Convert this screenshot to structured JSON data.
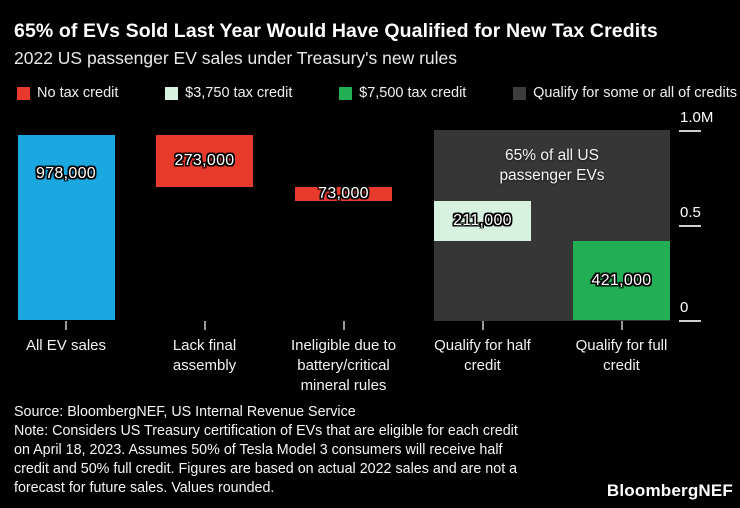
{
  "title": "65% of EVs Sold Last Year Would Have Qualified for New Tax Credits",
  "subtitle": "2022 US passenger EV sales under Treasury's new rules",
  "colors": {
    "background": "#000000",
    "blue": "#1ba7e0",
    "red": "#e73a2c",
    "mint": "#d7f2df",
    "green": "#21ae54",
    "box_gray": "#363636",
    "legend_gray": "#3d3d3d"
  },
  "legend": [
    {
      "label": "No tax credit",
      "color_key": "red"
    },
    {
      "label": "$3,750 tax credit",
      "color_key": "mint"
    },
    {
      "label": "$7,500 tax credit",
      "color_key": "green"
    },
    {
      "label": "Qualify for some or all of credits",
      "color_key": "legend_gray"
    }
  ],
  "chart_data": {
    "type": "bar",
    "subtype": "waterfall",
    "title": "65% of EVs Sold Last Year Would Have Qualified for New Tax Credits",
    "subtitle": "2022 US passenger EV sales under Treasury's new rules",
    "unit": "vehicles",
    "ylim": [
      0,
      1000000
    ],
    "grid": false,
    "y_axis_side": "right",
    "y_ticks": [
      {
        "label": "1.0M",
        "value": 1000000
      },
      {
        "label": "0.5",
        "value": 500000
      },
      {
        "label": "0",
        "value": 0
      }
    ],
    "categories": [
      "All EV sales",
      "Lack final assembly",
      "Ineligible due to battery/critical mineral rules",
      "Qualify for half credit",
      "Qualify for full credit"
    ],
    "bars": [
      {
        "category": "All EV sales",
        "category_lines": [
          "All EV sales"
        ],
        "value": 978000,
        "value_label": "978,000",
        "segment": [
          0,
          978000
        ],
        "color_key": "blue"
      },
      {
        "category": "Lack final assembly",
        "category_lines": [
          "Lack final",
          "assembly"
        ],
        "value": 273000,
        "value_label": "273,000",
        "segment": [
          705000,
          978000
        ],
        "color_key": "red"
      },
      {
        "category": "Ineligible due to battery/critical mineral rules",
        "category_lines": [
          "Ineligible due to",
          "battery/critical",
          "mineral rules"
        ],
        "value": 73000,
        "value_label": "73,000",
        "segment": [
          632000,
          705000
        ],
        "color_key": "red"
      },
      {
        "category": "Qualify for half credit",
        "category_lines": [
          "Qualify for half",
          "credit"
        ],
        "value": 211000,
        "value_label": "211,000",
        "segment": [
          421000,
          632000
        ],
        "color_key": "mint"
      },
      {
        "category": "Qualify for full credit",
        "category_lines": [
          "Qualify for full",
          "credit"
        ],
        "value": 421000,
        "value_label": "421,000",
        "segment": [
          0,
          421000
        ],
        "color_key": "green"
      }
    ],
    "highlight_box": {
      "label_lines": [
        "65% of all US",
        "passenger EVs"
      ],
      "covers_bars": [
        3,
        4
      ],
      "color_key": "box_gray"
    }
  },
  "footer": {
    "source": "Source: BloombergNEF, US Internal Revenue Service",
    "note_lines": [
      "Note: Considers US Treasury certification of EVs that are eligible for each credit",
      "on April 18, 2023. Assumes 50% of Tesla Model 3 consumers will receive half",
      "credit and 50% full credit. Figures are based on actual 2022 sales and are not a",
      "forecast for future sales. Values rounded."
    ],
    "logo": "BloombergNEF"
  }
}
